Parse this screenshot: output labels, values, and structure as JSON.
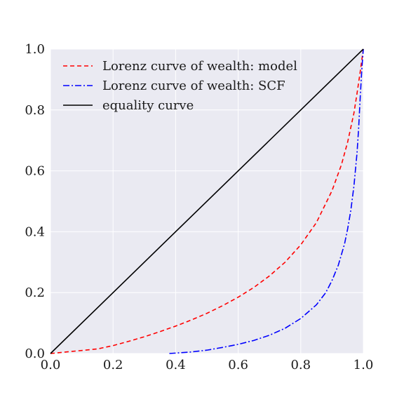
{
  "chart_data": {
    "type": "line",
    "xlim": [
      0.0,
      1.0
    ],
    "ylim": [
      0.0,
      1.0
    ],
    "xticks": [
      "0.0",
      "0.2",
      "0.4",
      "0.6",
      "0.8",
      "1.0"
    ],
    "yticks": [
      "0.0",
      "0.2",
      "0.4",
      "0.6",
      "0.8",
      "1.0"
    ],
    "grid": true,
    "background_color": "#EAEAF2",
    "legend_position": "top-left",
    "series": [
      {
        "name": "Lorenz curve of wealth: model",
        "color": "#FF0000",
        "linestyle": "dashed",
        "x": [
          0.0,
          0.05,
          0.1,
          0.15,
          0.2,
          0.25,
          0.3,
          0.35,
          0.4,
          0.45,
          0.5,
          0.55,
          0.6,
          0.65,
          0.7,
          0.75,
          0.8,
          0.85,
          0.9,
          0.93,
          0.95,
          0.97,
          0.98,
          0.99,
          1.0
        ],
        "y": [
          0.0,
          0.005,
          0.01,
          0.015,
          0.026,
          0.04,
          0.055,
          0.072,
          0.09,
          0.11,
          0.132,
          0.157,
          0.185,
          0.217,
          0.255,
          0.3,
          0.357,
          0.43,
          0.535,
          0.62,
          0.695,
          0.79,
          0.855,
          0.925,
          1.0
        ]
      },
      {
        "name": "Lorenz curve of wealth: SCF",
        "color": "#0000FF",
        "linestyle": "dashdot",
        "x": [
          0.38,
          0.45,
          0.5,
          0.55,
          0.6,
          0.65,
          0.7,
          0.75,
          0.8,
          0.85,
          0.88,
          0.9,
          0.92,
          0.94,
          0.95,
          0.96,
          0.97,
          0.98,
          0.985,
          0.99,
          0.995,
          1.0
        ],
        "y": [
          0.0,
          0.005,
          0.011,
          0.02,
          0.03,
          0.043,
          0.06,
          0.083,
          0.115,
          0.16,
          0.2,
          0.24,
          0.29,
          0.36,
          0.41,
          0.47,
          0.55,
          0.66,
          0.74,
          0.84,
          0.93,
          1.0
        ]
      },
      {
        "name": "equality curve",
        "color": "#000000",
        "linestyle": "solid",
        "x": [
          0.0,
          1.0
        ],
        "y": [
          0.0,
          1.0
        ]
      }
    ]
  }
}
